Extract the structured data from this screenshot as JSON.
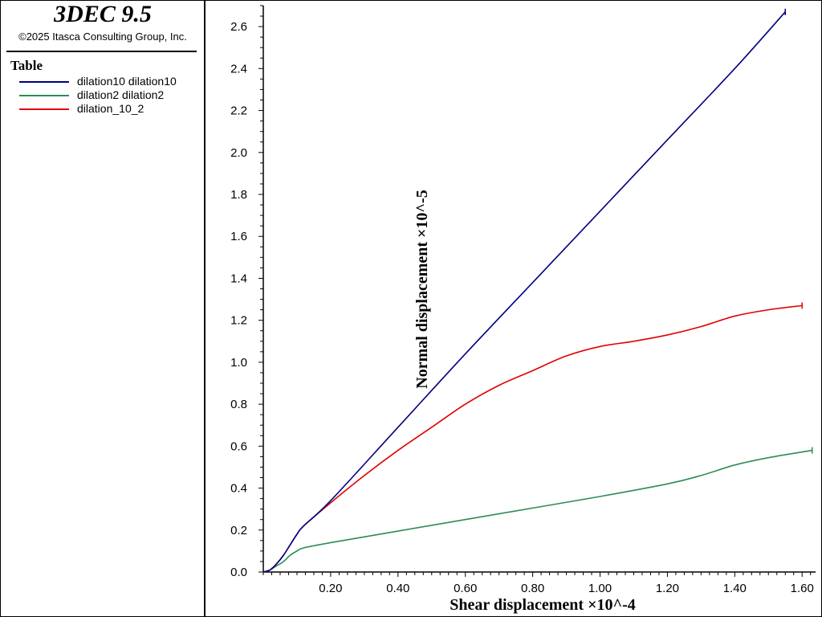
{
  "app": {
    "title": "3DEC 9.5",
    "copyright": "©2025 Itasca Consulting Group, Inc."
  },
  "legend": {
    "title": "Table",
    "items": [
      {
        "label": "dilation10 dilation10",
        "color": "#000080"
      },
      {
        "label": "dilation2 dilation2",
        "color": "#2e8b57"
      },
      {
        "label": "dilation_10_2",
        "color": "#e00000"
      }
    ]
  },
  "chart_data": {
    "type": "line",
    "xlabel": "Shear displacement ×10^-4",
    "ylabel": "Normal displacement ×10^-5",
    "xlim": [
      0,
      1.64
    ],
    "ylim": [
      0,
      2.7
    ],
    "xticks": [
      0.2,
      0.4,
      0.6,
      0.8,
      1.0,
      1.2,
      1.4,
      1.6
    ],
    "xtick_labels": [
      "0.20",
      "0.40",
      "0.60",
      "0.80",
      "1.00",
      "1.20",
      "1.40",
      "1.60"
    ],
    "yticks": [
      0.0,
      0.2,
      0.4,
      0.6,
      0.8,
      1.0,
      1.2,
      1.4,
      1.6,
      1.8,
      2.0,
      2.2,
      2.4,
      2.6
    ],
    "ytick_labels": [
      "0.0",
      "0.2",
      "0.4",
      "0.6",
      "0.8",
      "1.0",
      "1.2",
      "1.4",
      "1.6",
      "1.8",
      "2.0",
      "2.2",
      "2.4",
      "2.6"
    ],
    "grid": false,
    "legend_position": "left panel",
    "series": [
      {
        "name": "dilation10 dilation10",
        "color": "#000080",
        "points": [
          [
            0,
            0
          ],
          [
            0.02,
            0.01
          ],
          [
            0.04,
            0.04
          ],
          [
            0.06,
            0.08
          ],
          [
            0.08,
            0.13
          ],
          [
            0.1,
            0.18
          ],
          [
            0.12,
            0.22
          ],
          [
            0.2,
            0.34
          ],
          [
            0.4,
            0.69
          ],
          [
            0.6,
            1.04
          ],
          [
            0.8,
            1.38
          ],
          [
            1.0,
            1.72
          ],
          [
            1.2,
            2.06
          ],
          [
            1.4,
            2.4
          ],
          [
            1.55,
            2.67
          ]
        ]
      },
      {
        "name": "dilation2 dilation2",
        "color": "#2e8b57",
        "points": [
          [
            0,
            0
          ],
          [
            0.02,
            0.01
          ],
          [
            0.04,
            0.03
          ],
          [
            0.06,
            0.05
          ],
          [
            0.08,
            0.08
          ],
          [
            0.1,
            0.1
          ],
          [
            0.12,
            0.115
          ],
          [
            0.2,
            0.14
          ],
          [
            0.4,
            0.195
          ],
          [
            0.6,
            0.25
          ],
          [
            0.8,
            0.305
          ],
          [
            1.0,
            0.36
          ],
          [
            1.2,
            0.42
          ],
          [
            1.3,
            0.46
          ],
          [
            1.4,
            0.51
          ],
          [
            1.5,
            0.545
          ],
          [
            1.63,
            0.58
          ]
        ]
      },
      {
        "name": "dilation_10_2",
        "color": "#e00000",
        "points": [
          [
            0,
            0
          ],
          [
            0.02,
            0.01
          ],
          [
            0.04,
            0.04
          ],
          [
            0.06,
            0.08
          ],
          [
            0.08,
            0.13
          ],
          [
            0.1,
            0.18
          ],
          [
            0.12,
            0.22
          ],
          [
            0.2,
            0.33
          ],
          [
            0.3,
            0.46
          ],
          [
            0.4,
            0.58
          ],
          [
            0.5,
            0.69
          ],
          [
            0.6,
            0.8
          ],
          [
            0.7,
            0.89
          ],
          [
            0.8,
            0.96
          ],
          [
            0.9,
            1.03
          ],
          [
            1.0,
            1.075
          ],
          [
            1.1,
            1.1
          ],
          [
            1.2,
            1.13
          ],
          [
            1.3,
            1.17
          ],
          [
            1.4,
            1.22
          ],
          [
            1.5,
            1.25
          ],
          [
            1.6,
            1.27
          ]
        ]
      }
    ]
  }
}
